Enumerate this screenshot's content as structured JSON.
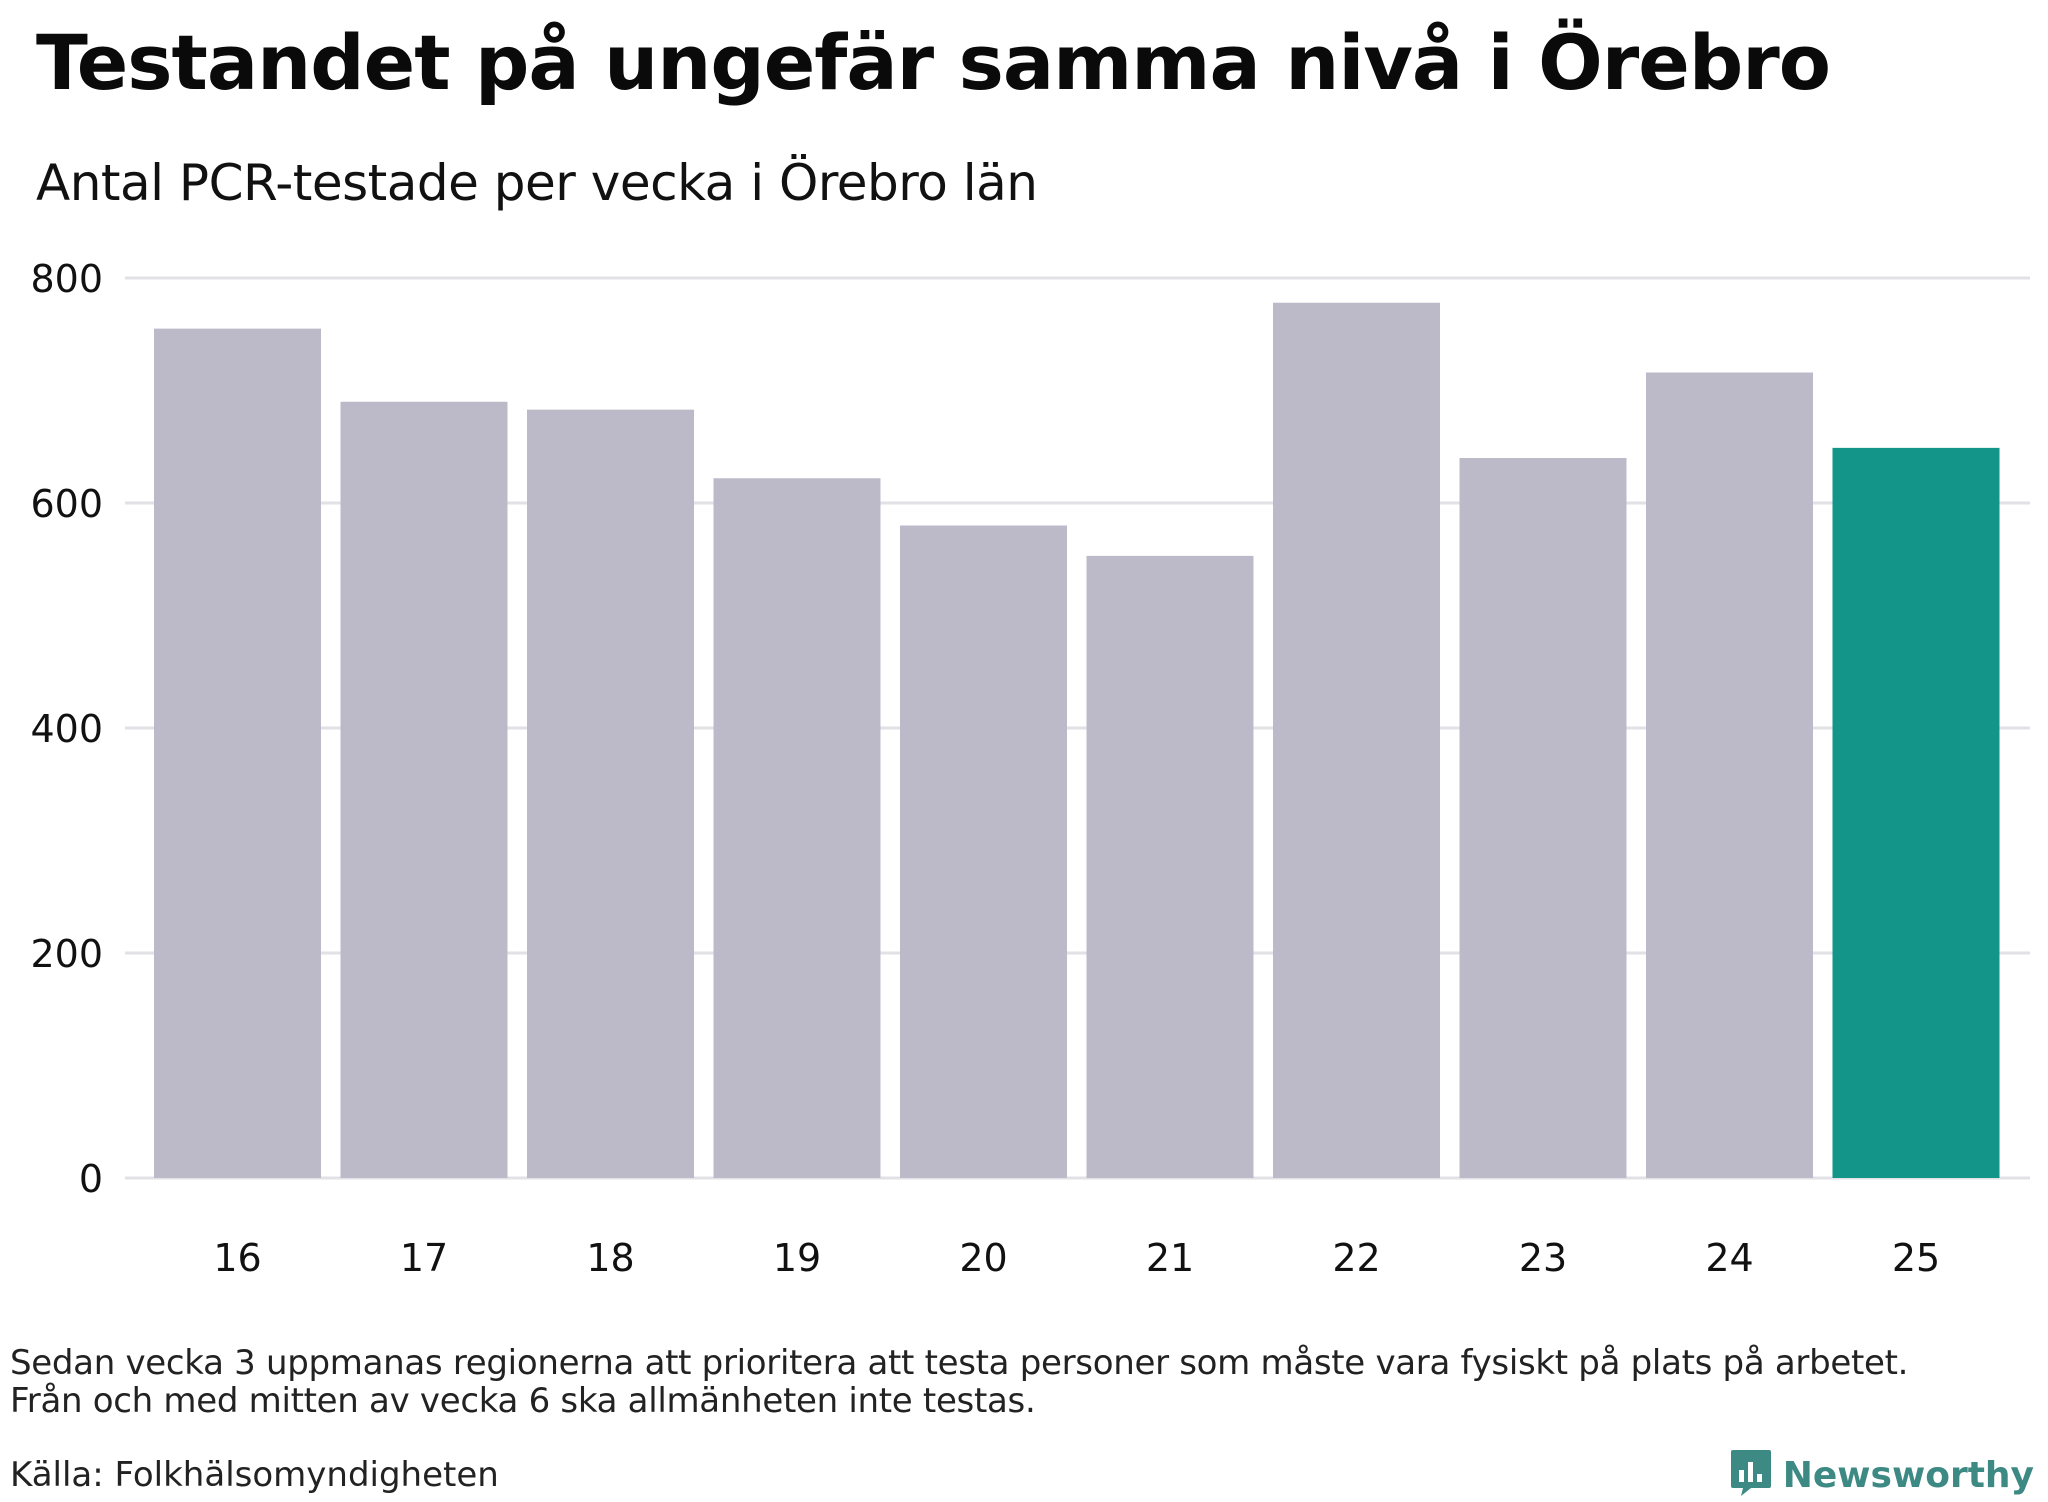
{
  "header": {
    "title": "Testandet på ungefär samma nivå i Örebro",
    "subtitle": "Antal PCR-testade per vecka i Örebro län"
  },
  "footer": {
    "note_line1": "Sedan vecka 3 uppmanas regionerna att prioritera att testa personer som måste vara fysiskt på plats på arbetet.",
    "note_line2": "Från och med mitten av vecka 6 ska allmänheten inte testas.",
    "source": "Källa: Folkhälsomyndigheten",
    "brand": "Newsworthy",
    "brand_icon": "bar-chart-bubble-icon"
  },
  "colors": {
    "bar": "#bcbac8",
    "highlight": "#14958a",
    "grid": "#e2e2e6",
    "brand": "#3d8a84"
  },
  "chart_data": {
    "type": "bar",
    "title": "Testandet på ungefär samma nivå i Örebro",
    "subtitle": "Antal PCR-testade per vecka i Örebro län",
    "xlabel": "",
    "ylabel": "",
    "categories": [
      "16",
      "17",
      "18",
      "19",
      "20",
      "21",
      "22",
      "23",
      "24",
      "25"
    ],
    "values": [
      755,
      690,
      683,
      622,
      580,
      553,
      778,
      640,
      716,
      649
    ],
    "highlight_category": "25",
    "ylim": [
      0,
      800
    ],
    "yticks": [
      0,
      200,
      400,
      600,
      800
    ],
    "grid": true,
    "legend": "none"
  }
}
